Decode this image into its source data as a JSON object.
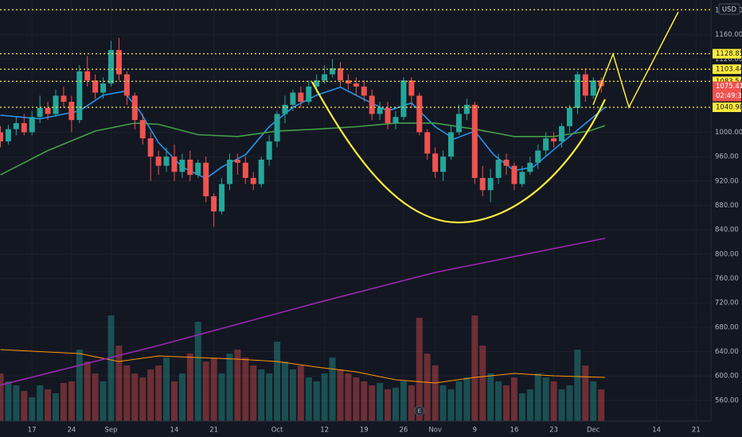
{
  "chart_data": {
    "type": "candlestick",
    "currency": "USD",
    "categories": [
      null,
      null,
      null,
      null,
      "17",
      null,
      null,
      null,
      null,
      "24",
      null,
      null,
      null,
      null,
      "Sep",
      null,
      null,
      null,
      null,
      null,
      null,
      null,
      "14",
      null,
      null,
      null,
      null,
      "21",
      null,
      null,
      null,
      null,
      null,
      null,
      null,
      "Oct",
      null,
      null,
      null,
      null,
      null,
      "12",
      null,
      null,
      null,
      null,
      "19",
      null,
      null,
      null,
      null,
      "26",
      null,
      null,
      null,
      "Nov",
      null,
      null,
      null,
      null,
      "9",
      null,
      null,
      null,
      null,
      "16",
      null,
      null,
      null,
      null,
      "23",
      null,
      null,
      null,
      null,
      "Dec",
      null,
      null,
      null,
      null,
      null,
      null,
      null,
      "14",
      null,
      null,
      null,
      null,
      "21",
      null
    ],
    "open": [
      1000,
      985,
      1005,
      1015,
      1000,
      1025,
      1040,
      1030,
      1060,
      1050,
      1020,
      1100,
      1085,
      1065,
      1080,
      1135,
      1095,
      1060,
      1020,
      990,
      960,
      945,
      960,
      935,
      955,
      930,
      950,
      895,
      870,
      915,
      955,
      950,
      925,
      915,
      955,
      985,
      1030,
      1045,
      1065,
      1050,
      1075,
      1085,
      1095,
      1105,
      1085,
      1080,
      1075,
      1060,
      1030,
      1040,
      1015,
      1025,
      1085,
      1060,
      1000,
      965,
      935,
      960,
      1000,
      1030,
      1045,
      925,
      905,
      925,
      955,
      945,
      915,
      935,
      950,
      970,
      990,
      985,
      1010,
      1040,
      1095,
      1060,
      1085,
      null,
      null,
      null,
      null,
      null,
      null,
      null,
      null,
      null,
      null,
      null,
      null,
      null
    ],
    "high": [
      1010,
      1012,
      1025,
      1030,
      1035,
      1060,
      1050,
      1070,
      1075,
      1060,
      1110,
      1125,
      1095,
      1090,
      1150,
      1155,
      1100,
      1065,
      1030,
      1000,
      970,
      975,
      980,
      965,
      970,
      955,
      960,
      900,
      925,
      965,
      965,
      960,
      935,
      960,
      995,
      1035,
      1060,
      1070,
      1075,
      1085,
      1095,
      1110,
      1120,
      1115,
      1095,
      1090,
      1085,
      1070,
      1050,
      1050,
      1035,
      1090,
      1090,
      1065,
      1005,
      975,
      970,
      1010,
      1045,
      1055,
      1050,
      945,
      940,
      965,
      965,
      950,
      945,
      960,
      980,
      1000,
      1000,
      1015,
      1045,
      1100,
      1105,
      1090,
      1090,
      null,
      null,
      null,
      null,
      null,
      null,
      null,
      null,
      null,
      null,
      null,
      null,
      null
    ],
    "low": [
      975,
      980,
      995,
      995,
      995,
      1015,
      1020,
      1025,
      1040,
      1000,
      1015,
      1075,
      1055,
      1055,
      1075,
      1085,
      1045,
      1005,
      980,
      920,
      930,
      935,
      920,
      925,
      920,
      925,
      885,
      845,
      865,
      905,
      930,
      915,
      905,
      910,
      945,
      975,
      1015,
      1035,
      1040,
      1045,
      1065,
      1080,
      1090,
      1075,
      1070,
      1060,
      1050,
      1020,
      1020,
      1005,
      1005,
      1020,
      1040,
      995,
      955,
      925,
      920,
      955,
      995,
      1020,
      915,
      895,
      885,
      915,
      930,
      905,
      910,
      930,
      940,
      960,
      975,
      975,
      1000,
      1030,
      1050,
      1055,
      1065,
      null,
      null,
      null,
      null,
      null,
      null,
      null,
      null,
      null,
      null,
      null,
      null,
      null
    ],
    "close": [
      985,
      1005,
      1015,
      1000,
      1025,
      1040,
      1030,
      1060,
      1050,
      1020,
      1100,
      1085,
      1065,
      1080,
      1135,
      1095,
      1060,
      1020,
      990,
      960,
      945,
      960,
      935,
      955,
      930,
      950,
      895,
      870,
      915,
      955,
      950,
      925,
      915,
      955,
      985,
      1030,
      1045,
      1065,
      1050,
      1075,
      1085,
      1095,
      1105,
      1085,
      1080,
      1075,
      1060,
      1030,
      1040,
      1015,
      1025,
      1085,
      1060,
      1000,
      965,
      935,
      960,
      1000,
      1030,
      1045,
      925,
      905,
      925,
      955,
      945,
      915,
      935,
      950,
      970,
      990,
      985,
      1010,
      1040,
      1095,
      1060,
      1085,
      1075.41,
      null,
      null,
      null,
      null,
      null,
      null,
      null,
      null,
      null,
      null,
      null,
      null,
      null
    ],
    "up_color": "#26a69a",
    "down_color": "#ef5350",
    "ylim": [
      526,
      1217
    ],
    "yticks": [
      {
        "value": 560,
        "label": "560.00"
      },
      {
        "value": 600,
        "label": "600.00"
      },
      {
        "value": 640,
        "label": "640.00"
      },
      {
        "value": 680,
        "label": "680.00"
      },
      {
        "value": 720,
        "label": "720.00"
      },
      {
        "value": 760,
        "label": "760.00"
      },
      {
        "value": 800,
        "label": "800.00"
      },
      {
        "value": 840,
        "label": "840.00"
      },
      {
        "value": 880,
        "label": "880.00"
      },
      {
        "value": 920,
        "label": "920.00"
      },
      {
        "value": 960,
        "label": "960.00"
      },
      {
        "value": 1000,
        "label": "1000.00"
      },
      {
        "value": 1040,
        "label": "1040.00"
      },
      {
        "value": 1080,
        "label": "1080.00"
      },
      {
        "value": 1120,
        "label": "1120.00"
      },
      {
        "value": 1160,
        "label": "1160.00"
      },
      {
        "value": 1200,
        "label": "1200.00"
      }
    ],
    "grid": true,
    "lines": [
      {
        "color": "#2196f3",
        "x": [
          0,
          5,
          10,
          13,
          15.6,
          17.6,
          20,
          23,
          26,
          28,
          31,
          34,
          37,
          40,
          43,
          46,
          49,
          52,
          55,
          57.4,
          60,
          62.4,
          65,
          67.4,
          70.4,
          73.5,
          76.5
        ],
        "values": [
          1028,
          1022,
          1035,
          1061,
          1067,
          1035,
          983,
          943,
          924,
          943,
          963,
          1009,
          1041,
          1061,
          1074,
          1054,
          1035,
          1048,
          1009,
          989,
          1002,
          963,
          937,
          943,
          976,
          1009,
          1041
        ]
      },
      {
        "color": "#43a047",
        "x": [
          0,
          6,
          12,
          17,
          20,
          25,
          30,
          35,
          40,
          45,
          50,
          55,
          60,
          65,
          70,
          74.5,
          76.5
        ],
        "values": [
          930,
          970,
          1002,
          1015,
          1013,
          996,
          993,
          1002,
          1005,
          1009,
          1015,
          1015,
          1005,
          993,
          993,
          1002,
          1011
        ]
      },
      {
        "color": "#9c27b0",
        "x": [
          0,
          20,
          40,
          55,
          76.5
        ],
        "values": [
          585,
          650,
          720,
          770,
          826
        ]
      }
    ],
    "volume": {
      "values": [
        60,
        50,
        45,
        38,
        30,
        45,
        40,
        35,
        48,
        50,
        90,
        75,
        60,
        50,
        133,
        95,
        70,
        60,
        55,
        65,
        70,
        80,
        50,
        60,
        85,
        125,
        75,
        80,
        60,
        85,
        90,
        80,
        70,
        65,
        60,
        100,
        75,
        65,
        70,
        55,
        50,
        60,
        80,
        65,
        60,
        55,
        50,
        45,
        48,
        40,
        42,
        50,
        45,
        130,
        85,
        70,
        45,
        40,
        50,
        55,
        133,
        95,
        60,
        50,
        45,
        55,
        35,
        40,
        60,
        55,
        50,
        40,
        45,
        90,
        70,
        50,
        40,
        null,
        null,
        null,
        null,
        null,
        null,
        null,
        null,
        null,
        null,
        null,
        null,
        null
      ],
      "ylim": [
        0,
        140
      ],
      "ma": {
        "color": "#ff9800",
        "x": [
          0,
          10,
          15,
          20,
          25,
          30,
          35,
          40,
          45,
          50,
          55,
          60,
          65,
          70,
          76.5
        ],
        "values": [
          90,
          85,
          75,
          82,
          80,
          78,
          75,
          68,
          62,
          52,
          48,
          55,
          60,
          57,
          55
        ]
      }
    },
    "levels": {
      "color": "#ffeb3b",
      "values": [
        1128.85,
        1103.44,
        1083.54,
        1040.98
      ],
      "unlabeled": [
        1201
      ]
    },
    "countdown": "02:49:34",
    "earnings": {
      "index": 53,
      "label": "E"
    }
  }
}
